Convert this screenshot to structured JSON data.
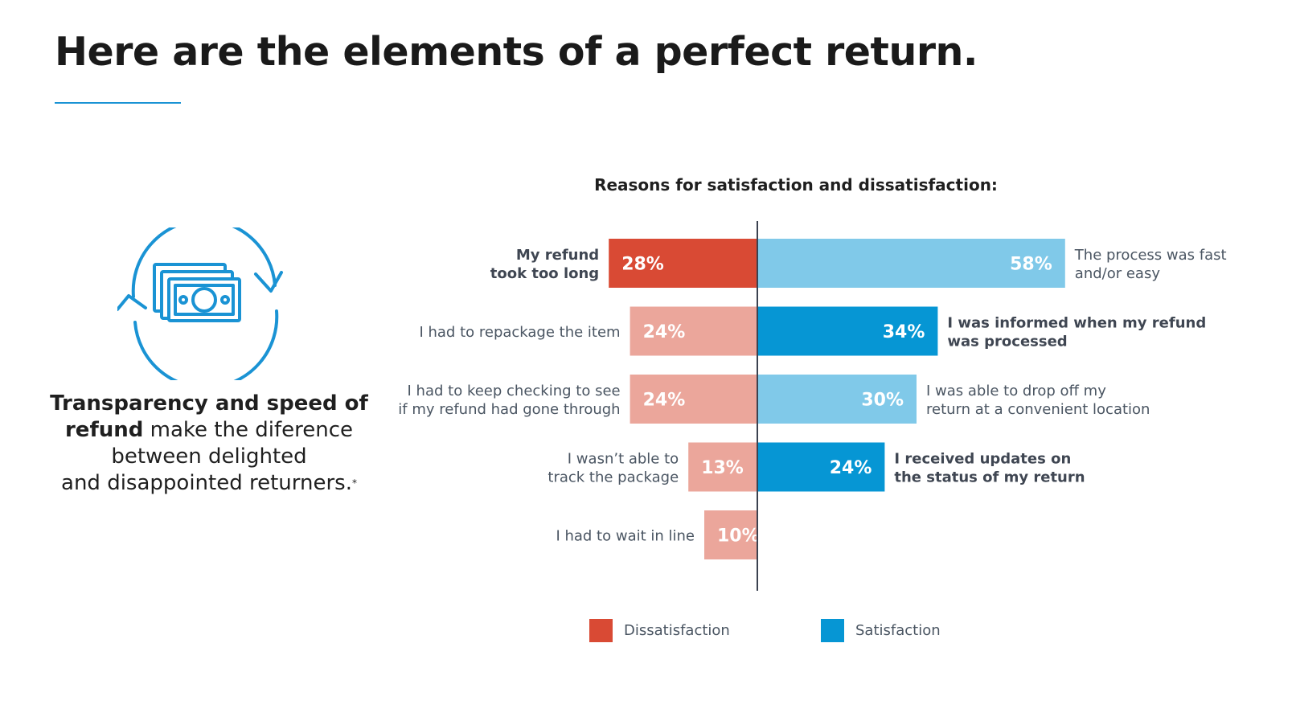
{
  "title": "Here are the elements of a perfect return.",
  "icon": "money-refund-cycle-icon",
  "caption": {
    "bold": "Transparency and speed of refund",
    "rest_line1": " make the diference",
    "rest_line2": "between delighted",
    "rest_line3": "and disappointed returners.",
    "footnote_mark": "*"
  },
  "colors": {
    "dissatisfaction_primary": "#d94a34",
    "dissatisfaction_light": "#eba69b",
    "satisfaction_primary": "#0696d4",
    "satisfaction_light": "#80c9e9",
    "accent_rule": "#1a93d4",
    "axis": "#3b4250"
  },
  "chart_data": {
    "type": "bar",
    "orientation": "diverging-horizontal",
    "title": "Reasons for satisfaction and dissatisfaction:",
    "series": [
      {
        "name": "Dissatisfaction",
        "side": "left",
        "items": [
          {
            "label_lines": [
              "My refund",
              "took too long"
            ],
            "value": 28,
            "value_label": "28%",
            "emphasis": true
          },
          {
            "label_lines": [
              "I had to repackage the item"
            ],
            "value": 24,
            "value_label": "24%",
            "emphasis": false
          },
          {
            "label_lines": [
              "I had to keep checking to see",
              "if my refund had gone through"
            ],
            "value": 24,
            "value_label": "24%",
            "emphasis": false
          },
          {
            "label_lines": [
              "I wasn’t able to",
              "track the package"
            ],
            "value": 13,
            "value_label": "13%",
            "emphasis": false
          },
          {
            "label_lines": [
              "I had to wait in line"
            ],
            "value": 10,
            "value_label": "10%",
            "emphasis": false
          }
        ]
      },
      {
        "name": "Satisfaction",
        "side": "right",
        "items": [
          {
            "label_lines": [
              "The process was fast",
              "and/or easy"
            ],
            "value": 58,
            "value_label": "58%",
            "emphasis": false
          },
          {
            "label_lines": [
              "I was informed when my refund",
              "was processed"
            ],
            "value": 34,
            "value_label": "34%",
            "emphasis": true
          },
          {
            "label_lines": [
              "I was able to drop off my",
              "return at a convenient location"
            ],
            "value": 30,
            "value_label": "30%",
            "emphasis": false
          },
          {
            "label_lines": [
              "I received updates on",
              "the status of my return"
            ],
            "value": 24,
            "value_label": "24%",
            "emphasis": true
          }
        ]
      }
    ],
    "legend": {
      "placement": "bottom",
      "items": [
        "Dissatisfaction",
        "Satisfaction"
      ]
    }
  }
}
